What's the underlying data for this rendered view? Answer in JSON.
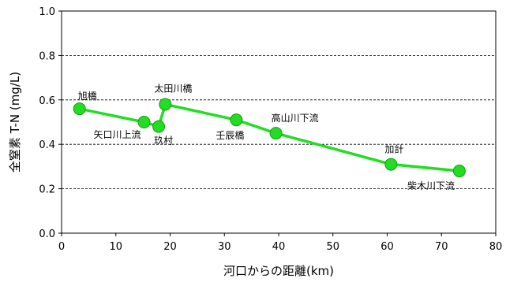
{
  "chart_data": {
    "type": "line",
    "xlabel": "河口からの距離(km)",
    "ylabel": "全窒素 T-N (mg/L)",
    "xlim": [
      0,
      80
    ],
    "ylim": [
      0.0,
      1.0
    ],
    "xticks": [
      "0",
      "10",
      "20",
      "30",
      "40",
      "50",
      "60",
      "70",
      "80"
    ],
    "yticks": [
      "0.0",
      "0.2",
      "0.4",
      "0.6",
      "0.8",
      "1.0"
    ],
    "grid": "horizontal dashed",
    "series": [
      {
        "color": "#22dd22",
        "points": [
          {
            "x": 3.3,
            "y": 0.56,
            "label": "旭橋"
          },
          {
            "x": 15.2,
            "y": 0.5,
            "label": "矢口川上流"
          },
          {
            "x": 17.9,
            "y": 0.48,
            "label": "玖村"
          },
          {
            "x": 19.1,
            "y": 0.58,
            "label": "太田川橋"
          },
          {
            "x": 32.2,
            "y": 0.51,
            "label": "壬辰橋"
          },
          {
            "x": 39.5,
            "y": 0.45,
            "label": "高山川下流"
          },
          {
            "x": 60.7,
            "y": 0.31,
            "label": "加計"
          },
          {
            "x": 73.3,
            "y": 0.28,
            "label": "柴木川下流"
          }
        ]
      }
    ]
  }
}
